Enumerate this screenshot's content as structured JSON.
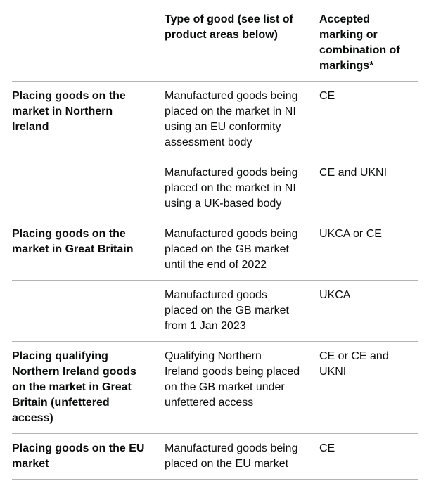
{
  "page": {
    "background_color": "#ffffff"
  },
  "table": {
    "border_color": "#b1b4b6",
    "text_color": "#0b0c0c",
    "columns": [
      {
        "label": ""
      },
      {
        "label": "Type of good (see list of\nproduct areas below)"
      },
      {
        "label": "Accepted\nmarking or\ncombination of\nmarkings*"
      }
    ],
    "rows": [
      {
        "scenario": "Placing goods on the\nmarket in Northern\nIreland",
        "type_of_good": "Manufactured goods being\nplaced on the market in NI\nusing an EU conformity\nassessment body",
        "marking": "CE"
      },
      {
        "scenario": "",
        "type_of_good": "Manufactured goods being\nplaced on the market in NI\nusing a UK-based body",
        "marking": "CE and UKNI"
      },
      {
        "scenario": "Placing goods on the\nmarket in Great Britain",
        "type_of_good": "Manufactured goods being\nplaced on the GB market\nuntil the end of 2022",
        "marking": "UKCA or CE"
      },
      {
        "scenario": "",
        "type_of_good": "Manufactured goods\nplaced on the GB market\nfrom 1 Jan 2023",
        "marking": "UKCA"
      },
      {
        "scenario": "Placing qualifying\nNorthern Ireland goods\non the market in Great\nBritain (unfettered\naccess)",
        "type_of_good": "Qualifying Northern\nIreland goods being placed\non the GB market under\nunfettered access",
        "marking": "CE or CE and UKNI"
      },
      {
        "scenario": "Placing goods on the EU\nmarket",
        "type_of_good": "Manufactured goods being\nplaced on the EU market",
        "marking": "CE"
      }
    ]
  }
}
